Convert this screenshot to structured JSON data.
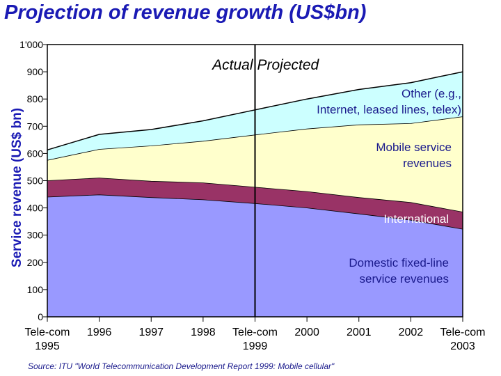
{
  "chart_data": {
    "type": "area",
    "stacked": true,
    "title": "Projection of revenue growth (US$bn)",
    "ylabel": "Service revenue (US$ bn)",
    "xlabel": "",
    "ylim": [
      0,
      1000
    ],
    "grid": false,
    "x_ticks": [
      "Tele-com 1995",
      "1996",
      "1997",
      "1998",
      "Tele-com 1999",
      "2000",
      "2001",
      "2002",
      "Tele-com 2003"
    ],
    "x_tick_lines": [
      [
        "Tele-com",
        "1995"
      ],
      [
        "1996"
      ],
      [
        "1997"
      ],
      [
        "1998"
      ],
      [
        "Tele-com",
        "1999"
      ],
      [
        "2000"
      ],
      [
        "2001"
      ],
      [
        "2002"
      ],
      [
        "Tele-com",
        "2003"
      ]
    ],
    "y_ticks": [
      {
        "value": 0,
        "label": "0"
      },
      {
        "value": 100,
        "label": "100"
      },
      {
        "value": 200,
        "label": "200"
      },
      {
        "value": 300,
        "label": "300"
      },
      {
        "value": 400,
        "label": "400"
      },
      {
        "value": 500,
        "label": "500"
      },
      {
        "value": 600,
        "label": "600"
      },
      {
        "value": 700,
        "label": "700"
      },
      {
        "value": 800,
        "label": "800"
      },
      {
        "value": 900,
        "label": "900"
      },
      {
        "value": 1000,
        "label": "1'000"
      }
    ],
    "series": [
      {
        "name": "Domestic fixed-line service revenues",
        "label_lines": [
          "Domestic fixed-line",
          "service revenues"
        ],
        "color": "#9999ff",
        "values": [
          440,
          448,
          438,
          430,
          416,
          400,
          378,
          355,
          322
        ]
      },
      {
        "name": "International",
        "label_lines": [
          "International"
        ],
        "color": "#993366",
        "values": [
          60,
          62,
          60,
          62,
          60,
          60,
          60,
          65,
          63
        ]
      },
      {
        "name": "Mobile service revenues",
        "label_lines": [
          "Mobile service",
          "revenues"
        ],
        "color": "#ffffcc",
        "values": [
          75,
          105,
          130,
          153,
          192,
          230,
          267,
          290,
          350
        ]
      },
      {
        "name": "Other (e.g., Internet, leased lines, telex)",
        "label_lines": [
          "Other (e.g.,",
          "Internet, leased lines, telex)"
        ],
        "color": "#ccffff",
        "values": [
          38,
          55,
          60,
          75,
          92,
          110,
          130,
          150,
          165
        ]
      }
    ],
    "divider_after": "Tele-com 1999",
    "annotations": [
      "Actual",
      "Projected"
    ]
  },
  "source": "Source:  ITU \"World Telecommunication Development Report 1999: Mobile cellular\""
}
